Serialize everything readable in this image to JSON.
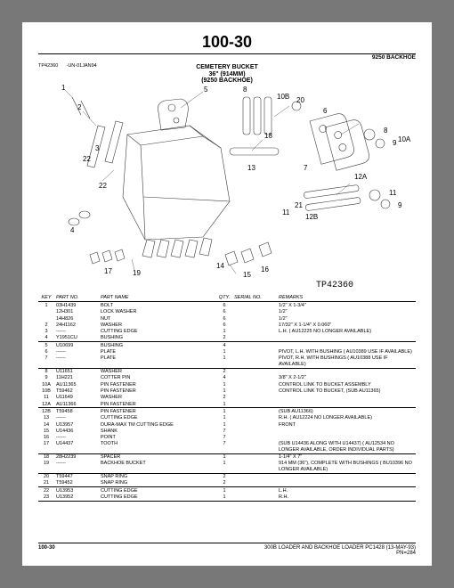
{
  "page_number": "100-30",
  "machine": "9250  BACKHOE",
  "title": {
    "line1": "CEMETERY BUCKET",
    "line2": "36\" (914MM)",
    "line3": "(9250 BACKHOE)"
  },
  "doc_ref_left": "TP42360",
  "doc_ref_right": "-UN-01JAN94",
  "tp_ref": "TP42360",
  "header": {
    "key": "KEY",
    "partno": "PART NO.",
    "name": "PART NAME",
    "qty": "QTY.",
    "serial": "SERIAL NO.",
    "remarks": "REMARKS"
  },
  "rows": [
    {
      "key": "1",
      "partno": "03H1439",
      "name": "BOLT",
      "qty": "6",
      "serial": "",
      "remarks": "1/2\" X 1-3/4\""
    },
    {
      "key": "",
      "partno": "12H301",
      "name": "LOCK WASHER",
      "qty": "6",
      "serial": "",
      "remarks": "1/2\""
    },
    {
      "key": "",
      "partno": "14H826",
      "name": "NUT",
      "qty": "6",
      "serial": "",
      "remarks": "1/2\""
    },
    {
      "key": "2",
      "partno": "24H1162",
      "name": "WASHER",
      "qty": "6",
      "serial": "",
      "remarks": "17/32\" X 1-1/4\" X 0.060\""
    },
    {
      "key": "3",
      "partno": "------",
      "name": "CUTTING EDGE",
      "qty": "1",
      "serial": "",
      "remarks": "L.H. ( AU12225 NO LONGER AVAILABLE)"
    },
    {
      "key": "4",
      "partno": "Y1951CU",
      "name": "BUSHING",
      "qty": "2",
      "serial": "",
      "remarks": "",
      "sep": true
    },
    {
      "key": "5",
      "partno": "U10699",
      "name": "BUSHING",
      "qty": "4",
      "serial": "",
      "remarks": ""
    },
    {
      "key": "6",
      "partno": "------",
      "name": "PLATE",
      "qty": "1",
      "serial": "",
      "remarks": "PIVOT, L.H. WITH BUSHING ( AU10389 USE IF AVAILABLE)"
    },
    {
      "key": "7",
      "partno": "------",
      "name": "PLATE",
      "qty": "1",
      "serial": "",
      "remarks": "PIVOT, R.H. WITH BUSHINGS ( AU10388 USE IF AVAILABLE)",
      "sep": true
    },
    {
      "key": "8",
      "partno": "U11651",
      "name": "WASHER",
      "qty": "2",
      "serial": "",
      "remarks": ""
    },
    {
      "key": "9",
      "partno": "11H221",
      "name": "COTTER PIN",
      "qty": "4",
      "serial": "",
      "remarks": "3/8\" X 2-1/2\""
    },
    {
      "key": "10A",
      "partno": "AU11365",
      "name": "PIN FASTENER",
      "qty": "1",
      "serial": "",
      "remarks": "CONTROL LINK TO BUCKET ASSEMBLY"
    },
    {
      "key": "10B",
      "partno": "T59462",
      "name": "PIN FASTENER",
      "qty": "1",
      "serial": "",
      "remarks": "CONTROL LINK TO BUCKET, (SUB AU11365)"
    },
    {
      "key": "11",
      "partno": "U11649",
      "name": "WASHER",
      "qty": "2",
      "serial": "",
      "remarks": ""
    },
    {
      "key": "12A",
      "partno": "AU11366",
      "name": "PIN FASTENER",
      "qty": "1",
      "serial": "",
      "remarks": "",
      "sep": true
    },
    {
      "key": "12B",
      "partno": "T59458",
      "name": "PIN FASTENER",
      "qty": "1",
      "serial": "",
      "remarks": "(SUB AU11366)"
    },
    {
      "key": "13",
      "partno": "------",
      "name": "CUTTING EDGE",
      "qty": "1",
      "serial": "",
      "remarks": "R.H. ( AU12224 NO LONGER AVAILABLE)"
    },
    {
      "key": "14",
      "partno": "U13957",
      "name": "DURA-MAX TM CUTTING EDGE",
      "qty": "1",
      "serial": "",
      "remarks": "FRONT"
    },
    {
      "key": "15",
      "partno": "U14436",
      "name": "SHANK",
      "qty": "7",
      "serial": "",
      "remarks": ""
    },
    {
      "key": "16",
      "partno": "------",
      "name": "POINT",
      "qty": "7",
      "serial": "",
      "remarks": ""
    },
    {
      "key": "17",
      "partno": "U14437",
      "name": "TOOTH",
      "qty": "7",
      "serial": "",
      "remarks": "(SUB U14436 ALONG WITH U14437) ( AU12534 NO LONGER AVAILABLE, ORDER INDIVIDUAL PARTS)",
      "sep": true
    },
    {
      "key": "18",
      "partno": "28H2239",
      "name": "SPACER",
      "qty": "1",
      "serial": "",
      "remarks": "1-1/4\" X 7\""
    },
    {
      "key": "19",
      "partno": "------",
      "name": "BACKHOE BUCKET",
      "qty": "1",
      "serial": "",
      "remarks": "914 MM (36\"), COMPLETE WITH BUSHINGS ( BU10396 NO LONGER AVAILABLE)",
      "sep": true
    },
    {
      "key": "20",
      "partno": "T59447",
      "name": "SNAP RING",
      "qty": "2",
      "serial": "",
      "remarks": ""
    },
    {
      "key": "21",
      "partno": "T59452",
      "name": "SNAP RING",
      "qty": "2",
      "serial": "",
      "remarks": "",
      "sep": true
    },
    {
      "key": "22",
      "partno": "U13953",
      "name": "CUTTING EDGE",
      "qty": "1",
      "serial": "",
      "remarks": "L.H."
    },
    {
      "key": "23",
      "partno": "U13952",
      "name": "CUTTING EDGE",
      "qty": "1",
      "serial": "",
      "remarks": "R.H.",
      "sep": true
    }
  ],
  "footer": {
    "left": "100-30",
    "right1": "300B LOADER AND BACKHOE LOADER   PC1428   (13-MAY-93)",
    "right2": "PN=284"
  },
  "diagram_labels": [
    "1",
    "2",
    "3",
    "4",
    "5",
    "6",
    "7",
    "8",
    "9",
    "10A",
    "10B",
    "11",
    "12A",
    "12B",
    "13",
    "14",
    "15",
    "16",
    "17",
    "18",
    "19",
    "20",
    "21",
    "22"
  ]
}
